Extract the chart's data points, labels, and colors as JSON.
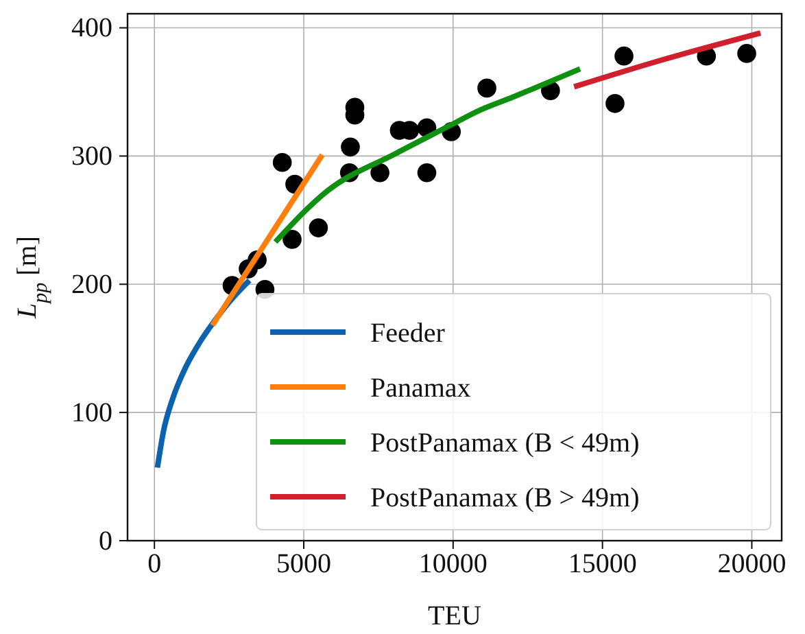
{
  "chart_data": {
    "type": "line",
    "xlabel": "TEU",
    "ylabel": "L$_{pp}$ [m]",
    "xlim": [
      -900,
      21000
    ],
    "ylim": [
      0,
      411
    ],
    "xticks": [
      0,
      5000,
      10000,
      15000,
      20000
    ],
    "yticks": [
      0,
      100,
      200,
      300,
      400
    ],
    "grid": true,
    "legend": "bottom right",
    "series": [
      {
        "type": "scatter",
        "marker": "circle",
        "color": "#000000",
        "x": [
          2600,
          3140,
          3440,
          3700,
          4280,
          4700,
          4610,
          5490,
          6560,
          6530,
          6710,
          6710,
          7550,
          8200,
          8540,
          9120,
          9120,
          9940,
          11130,
          13260,
          15420,
          15720,
          18480,
          19830
        ],
        "values": [
          199,
          212,
          219,
          196,
          295,
          278,
          235,
          244,
          307,
          287,
          338,
          332,
          287,
          320,
          320,
          322,
          287,
          319,
          353,
          351,
          341,
          378,
          378,
          380
        ]
      },
      {
        "name": "Feeder",
        "color": "#0c62ad",
        "x": [
          100,
          300,
          600,
          1000,
          1500,
          2000,
          2500,
          3180
        ],
        "values": [
          57,
          85,
          110,
          133,
          154,
          171,
          186,
          203
        ]
      },
      {
        "name": "Panamax",
        "color": "#ff7f0e",
        "x": [
          1940,
          5620
        ],
        "values": [
          168,
          301
        ]
      },
      {
        "name": "PostPanamax (B < 49m)",
        "color": "#109010",
        "x": [
          4050,
          5800,
          8080,
          9910,
          10820,
          12000,
          14250
        ],
        "values": [
          233,
          273,
          302,
          324,
          335,
          346,
          368
        ]
      },
      {
        "name": "PostPanamax (B > 49m)",
        "color": "#d0202e",
        "x": [
          14050,
          17000,
          20290
        ],
        "values": [
          354,
          375,
          396
        ]
      }
    ]
  }
}
